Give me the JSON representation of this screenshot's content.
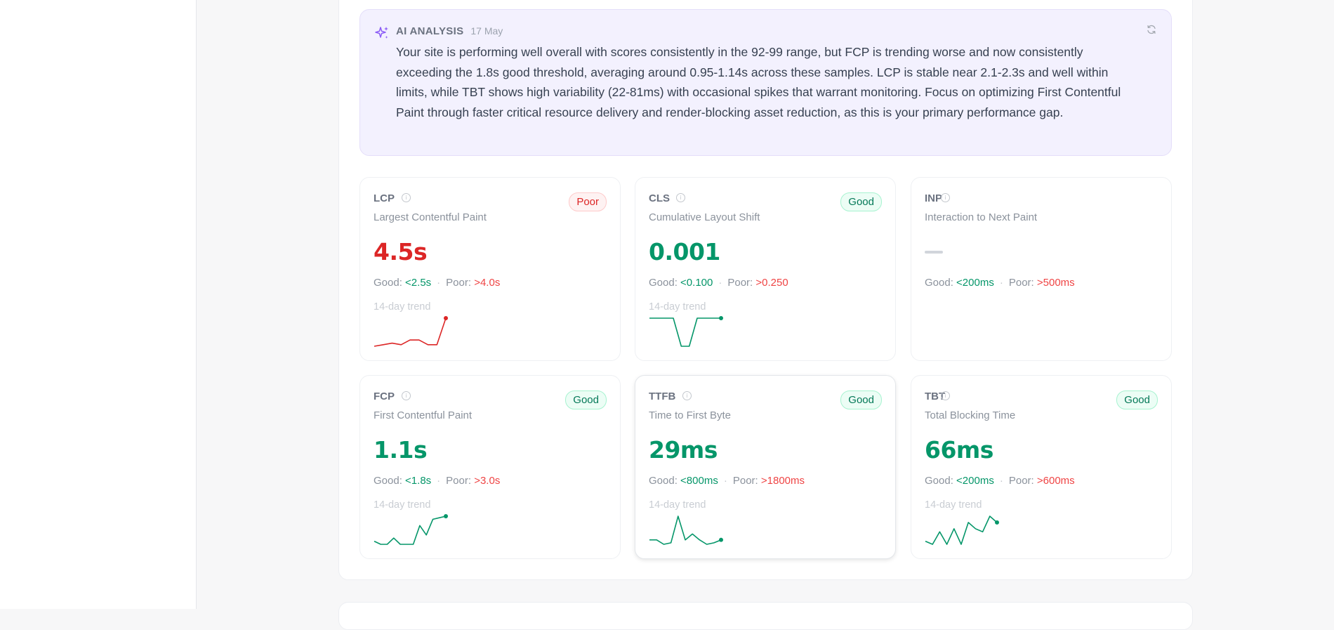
{
  "ai_analysis": {
    "title": "AI ANALYSIS",
    "date": "17 May",
    "text": "Your site is performing well overall with scores consistently in the 92-99 range, but FCP is trending worse and now consistently exceeding the 1.8s good threshold, averaging around 0.95-1.14s across these samples. LCP is stable near 2.1-2.3s and well within limits, while TBT shows high variability (22-81ms) with occasional spikes that warrant monitoring. Focus on optimizing First Contentful Paint through faster critical resource delivery and render-blocking asset reduction, as this is your primary performance gap."
  },
  "colors": {
    "good": "#059669",
    "poor": "#dc2626",
    "accent": "#8b5cf6"
  },
  "trend_label": "14-day trend",
  "metrics": {
    "lcp": {
      "abbr": "LCP",
      "name": "Largest Contentful Paint",
      "badge": "Poor",
      "status": "poor",
      "value": "4.5s",
      "good_label": "Good:",
      "good_value": "<2.5s",
      "poor_label": "Poor:",
      "poor_value": ">4.0s",
      "trend": [
        1,
        1.5,
        2,
        1.5,
        3,
        3,
        1.5,
        1.5,
        10
      ]
    },
    "cls": {
      "abbr": "CLS",
      "name": "Cumulative Layout Shift",
      "badge": "Good",
      "status": "good",
      "value": "0.001",
      "good_label": "Good:",
      "good_value": "<0.100",
      "poor_label": "Poor:",
      "poor_value": ">0.250",
      "trend": [
        10,
        10,
        10,
        10,
        1,
        1,
        10,
        10,
        10,
        10
      ]
    },
    "inp": {
      "abbr": "INP",
      "name": "Interaction to Next Paint",
      "badge": "",
      "status": "none",
      "value": "",
      "good_label": "Good:",
      "good_value": "<200ms",
      "poor_label": "Poor:",
      "poor_value": ">500ms",
      "trend": []
    },
    "fcp": {
      "abbr": "FCP",
      "name": "First Contentful Paint",
      "badge": "Good",
      "status": "good",
      "value": "1.1s",
      "good_label": "Good:",
      "good_value": "<1.8s",
      "poor_label": "Poor:",
      "poor_value": ">3.0s",
      "trend": [
        2,
        1,
        1,
        3,
        1,
        1,
        1,
        7,
        4,
        9,
        9.5,
        10
      ]
    },
    "ttfb": {
      "abbr": "TTFB",
      "name": "Time to First Byte",
      "badge": "Good",
      "status": "good",
      "value": "29ms",
      "good_label": "Good:",
      "good_value": "<800ms",
      "poor_label": "Poor:",
      "poor_value": ">1800ms",
      "trend": [
        2,
        2,
        0.5,
        1,
        10,
        2,
        4,
        2,
        0.5,
        1,
        2
      ]
    },
    "tbt": {
      "abbr": "TBT",
      "name": "Total Blocking Time",
      "badge": "Good",
      "status": "good",
      "value": "66ms",
      "good_label": "Good:",
      "good_value": "<200ms",
      "poor_label": "Poor:",
      "poor_value": ">600ms",
      "trend": [
        2,
        1,
        5,
        1,
        6,
        1,
        8,
        6,
        5,
        10,
        8
      ]
    }
  }
}
